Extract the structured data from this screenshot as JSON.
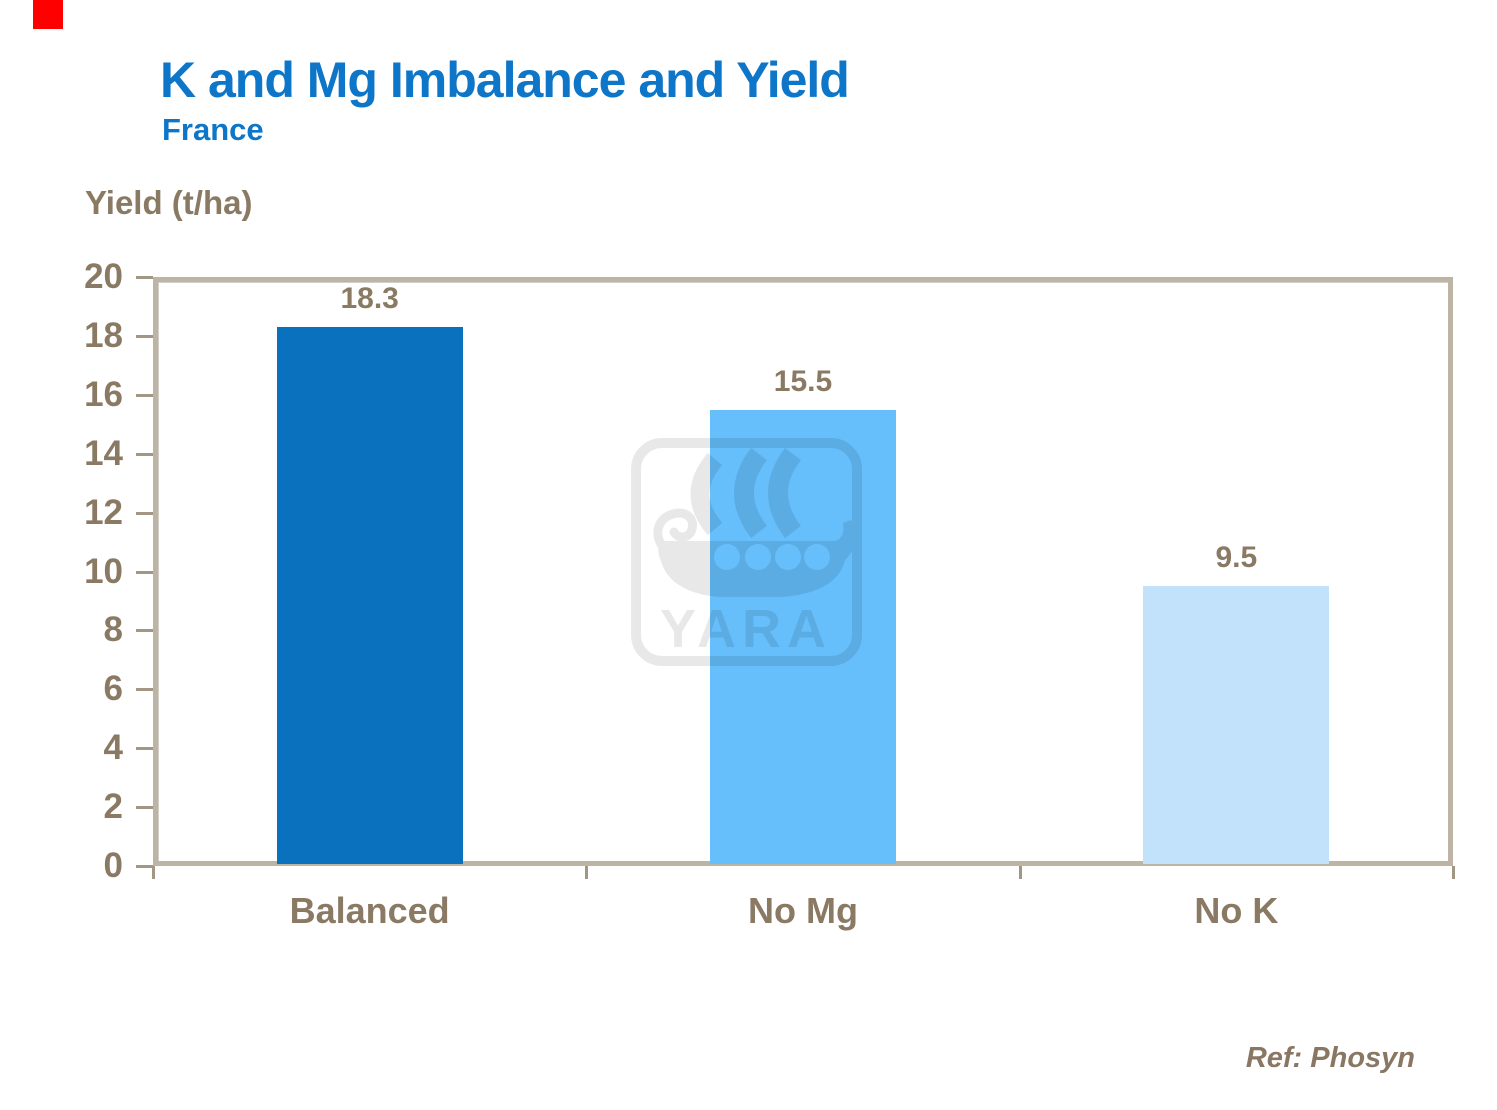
{
  "slide": {
    "title": "K and Mg Imbalance and Yield",
    "subtitle": "France",
    "reference": "Ref: Phosyn"
  },
  "watermark": {
    "name": "yara-viking-ship-logo",
    "text": "YARA"
  },
  "colors": {
    "title_blue": "#0d76c8",
    "text_brown": "#8a7a64",
    "axis_frame_tan": "#bdb4a6",
    "brand_red_square": "#fe0000"
  },
  "chart_data": {
    "type": "bar",
    "title": "K and Mg Imbalance and Yield",
    "subtitle": "France",
    "ylabel": "Yield (t/ha)",
    "xlabel": "",
    "categories": [
      "Balanced",
      "No Mg",
      "No K"
    ],
    "values": [
      18.3,
      15.5,
      9.5
    ],
    "data_labels": [
      "18.3",
      "15.5",
      "9.5"
    ],
    "bar_colors": [
      "#0971bd",
      "#66befb",
      "#c2e2fb"
    ],
    "ylim": [
      0,
      20
    ],
    "yticks": [
      0,
      2,
      4,
      6,
      8,
      10,
      12,
      14,
      16,
      18,
      20
    ],
    "grid": false,
    "legend": false
  }
}
